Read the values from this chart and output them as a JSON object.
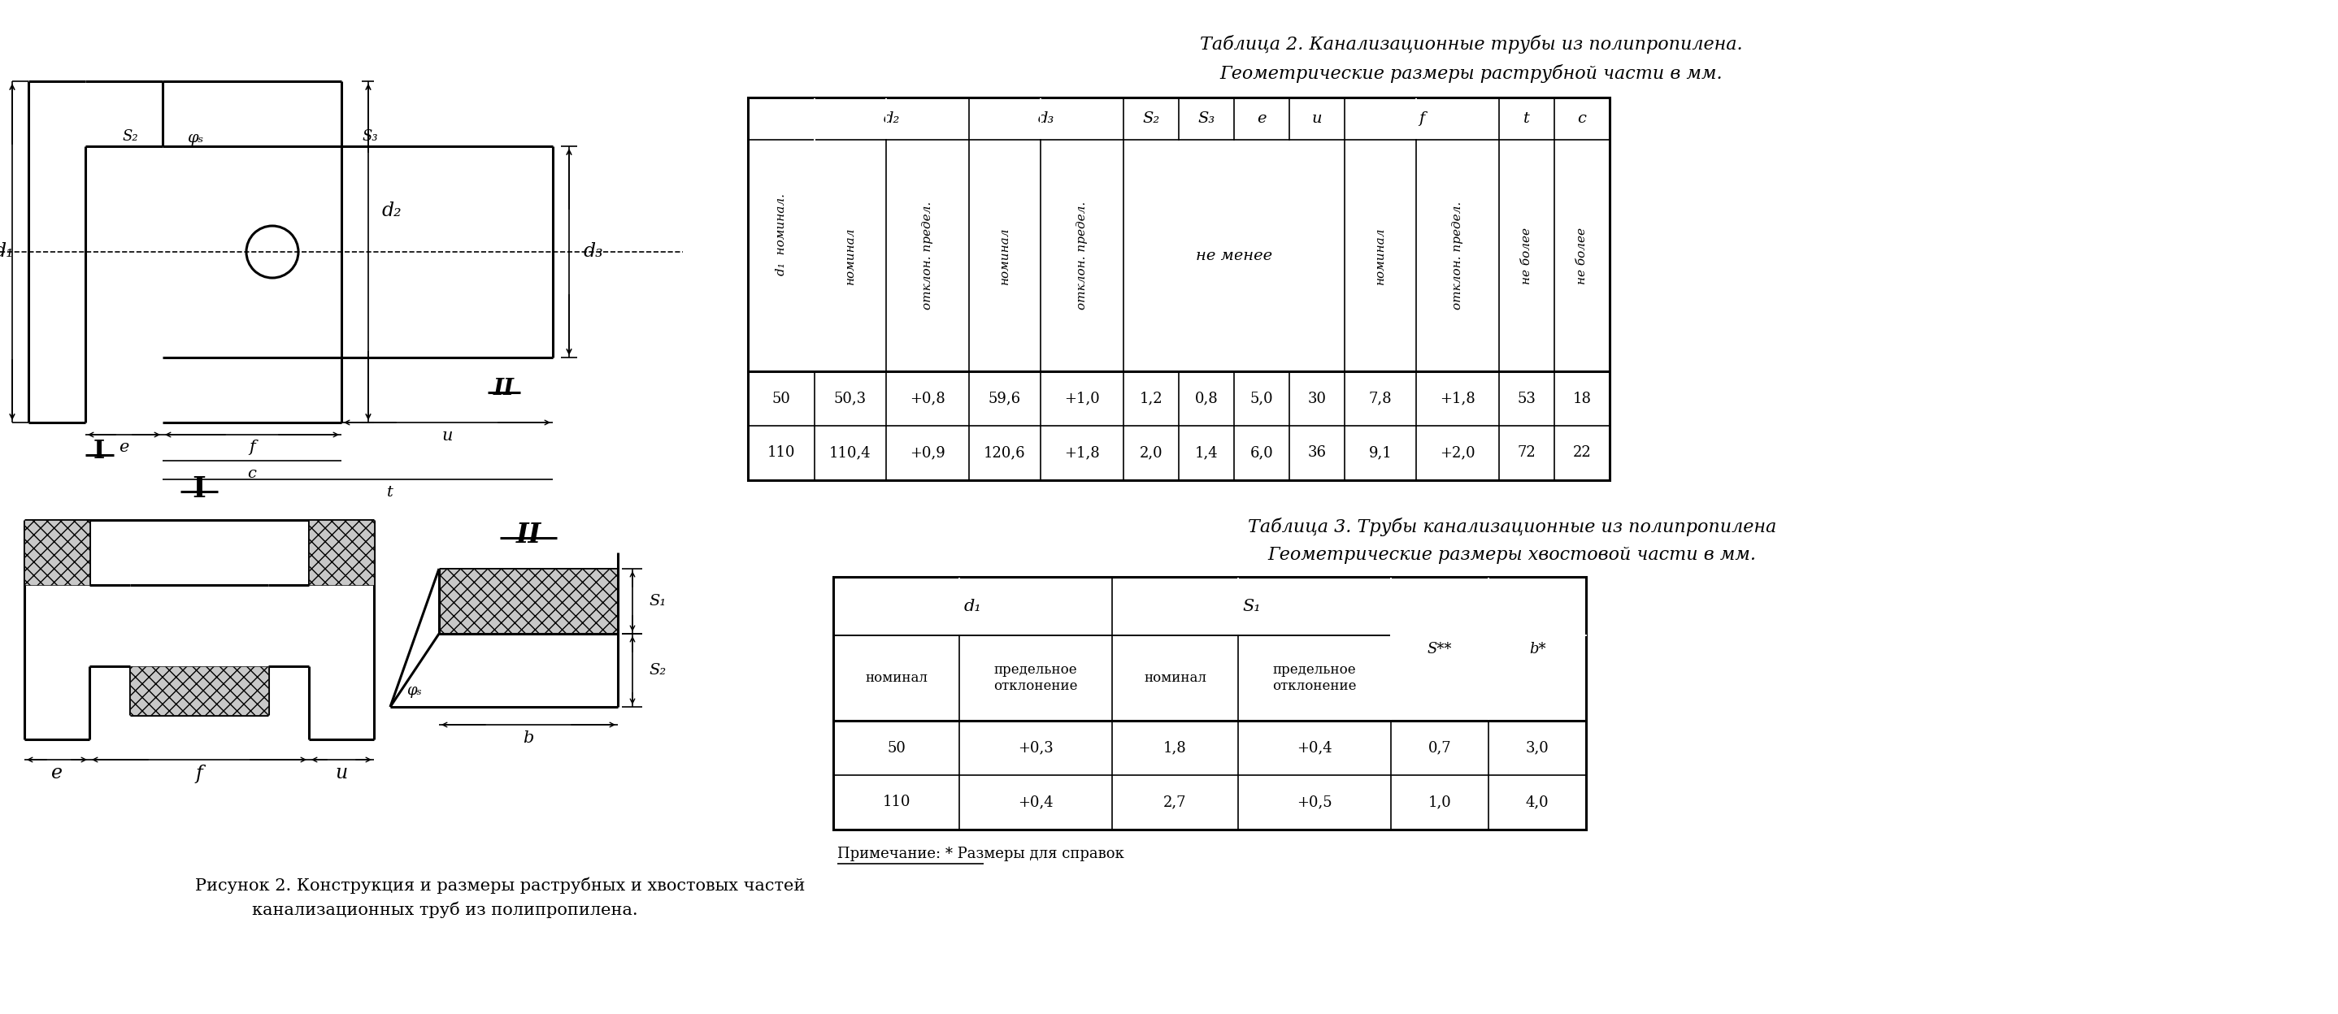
{
  "bg_color": "#ffffff",
  "text_color": "#000000",
  "line_color": "#000000",
  "table2_title_line1": "Таблица 2. Канализационные трубы из полипропилена.",
  "table2_title_line2": "Геометрические размеры раструбной части в мм.",
  "table3_title_line1": "Таблица 3. Трубы канализационные из полипропилена",
  "table3_title_line2": "Геометрические размеры хвостовой части в мм.",
  "table2_data": [
    [
      "50",
      "50,3",
      "+0,8",
      "59,6",
      "+1,0",
      "1,2",
      "0,8",
      "5,0",
      "30",
      "7,8",
      "+1,8",
      "53",
      "18"
    ],
    [
      "110",
      "110,4",
      "+0,9",
      "120,6",
      "+1,8",
      "2,0",
      "1,4",
      "6,0",
      "36",
      "9,1",
      "+2,0",
      "72",
      "22"
    ]
  ],
  "table3_data": [
    [
      "50",
      "+0,3",
      "1,8",
      "+0,4",
      "0,7",
      "3,0"
    ],
    [
      "110",
      "+0,4",
      "2,7",
      "+0,5",
      "1,0",
      "4,0"
    ]
  ],
  "table3_note": "Примечание: * Размеры для справок",
  "caption_line1": "Рисунок 2. Конструкция и размеры раструбных и хвостовых частей",
  "caption_line2": "канализационных труб из полипропилена."
}
